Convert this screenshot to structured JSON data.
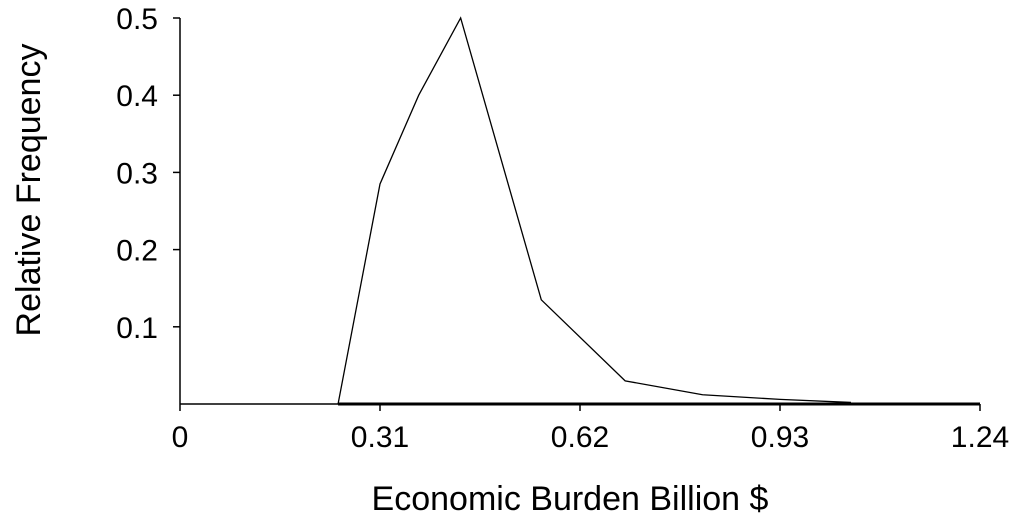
{
  "chart_data": {
    "type": "line",
    "title": "",
    "xlabel": "Economic Burden Billion $",
    "ylabel": "Relative Frequency",
    "xlim": [
      0,
      1.24
    ],
    "ylim": [
      0,
      0.5
    ],
    "x_ticks": [
      "0",
      "0.31",
      "0.62",
      "0.93",
      "1.24"
    ],
    "y_ticks": [
      "0.1",
      "0.2",
      "0.3",
      "0.4",
      "0.5"
    ],
    "grid": false,
    "legend": "none",
    "series": [
      {
        "x": [
          0.245,
          0.31,
          0.37,
          0.435,
          0.56,
          0.69,
          0.81,
          0.93,
          1.04
        ],
        "y": [
          0.0,
          0.285,
          0.4,
          0.5,
          0.135,
          0.03,
          0.012,
          0.006,
          0.002
        ],
        "color": "#000000"
      }
    ],
    "baseline": {
      "x": [
        0.245,
        1.24
      ],
      "color": "#000000"
    }
  }
}
